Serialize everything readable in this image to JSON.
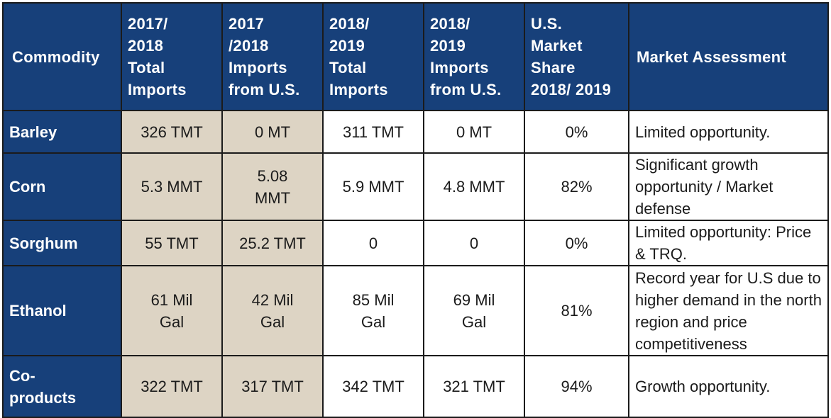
{
  "table": {
    "headers": [
      "Commodity",
      "2017/\n2018\nTotal\nImports",
      "2017\n/2018\nImports\nfrom U.S.",
      "2018/\n2019\nTotal\nImports",
      "2018/\n2019\nImports\nfrom U.S.",
      "U.S.\nMarket\nShare\n2018/ 2019",
      "Market Assessment"
    ],
    "rows": [
      {
        "commodity": "Barley",
        "imports_2017_2018_total": "326 TMT",
        "imports_2017_2018_us": "0 MT",
        "imports_2018_2019_total": "311 TMT",
        "imports_2018_2019_us": "0 MT",
        "us_market_share": "0%",
        "assessment": "Limited opportunity."
      },
      {
        "commodity": "Corn",
        "imports_2017_2018_total": "5.3 MMT",
        "imports_2017_2018_us": "5.08\nMMT",
        "imports_2018_2019_total": "5.9 MMT",
        "imports_2018_2019_us": "4.8 MMT",
        "us_market_share": "82%",
        "assessment": "Significant growth opportunity / Market defense"
      },
      {
        "commodity": "Sorghum",
        "imports_2017_2018_total": "55 TMT",
        "imports_2017_2018_us": "25.2 TMT",
        "imports_2018_2019_total": "0",
        "imports_2018_2019_us": "0",
        "us_market_share": "0%",
        "assessment": "Limited opportunity: Price & TRQ."
      },
      {
        "commodity": "Ethanol",
        "imports_2017_2018_total": "61 Mil\nGal",
        "imports_2017_2018_us": "42 Mil\nGal",
        "imports_2018_2019_total": "85 Mil\nGal",
        "imports_2018_2019_us": "69 Mil\nGal",
        "us_market_share": "81%",
        "assessment": "Record year for U.S due to higher demand in the north region and price competitiveness"
      },
      {
        "commodity": "Co-\nproducts",
        "imports_2017_2018_total": "322 TMT",
        "imports_2017_2018_us": "317 TMT",
        "imports_2018_2019_total": "342 TMT",
        "imports_2018_2019_us": "321 TMT",
        "us_market_share": "94%",
        "assessment": "Growth opportunity."
      }
    ]
  },
  "colors": {
    "header_blue": "#17407a",
    "tan_shade": "#ddd4c4",
    "border": "#1b1b1b"
  }
}
